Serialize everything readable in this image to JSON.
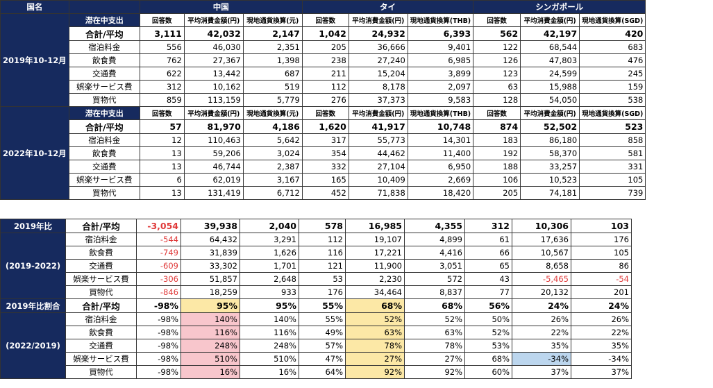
{
  "countries": [
    "中国",
    "タイ",
    "シンガポール"
  ],
  "country_label": "国名",
  "sub_headers": [
    "回答数",
    "平均消費金額(円)"
  ],
  "currency_headers": [
    "現地通貨換算(元)",
    "現地通貨換算(THB)",
    "現地通貨換算(SGD)"
  ],
  "corner_label": "滞在中支出",
  "row_labels": [
    "合計/平均",
    "宿泊料金",
    "飲食費",
    "交通費",
    "娯楽サービス費",
    "買物代"
  ],
  "block2019": {
    "label": "2019年10-12月",
    "rows": [
      [
        "3,111",
        "42,032",
        "2,147",
        "1,042",
        "24,932",
        "6,393",
        "562",
        "42,197",
        "420"
      ],
      [
        "556",
        "46,030",
        "2,351",
        "205",
        "36,666",
        "9,401",
        "122",
        "68,544",
        "683"
      ],
      [
        "762",
        "27,367",
        "1,398",
        "238",
        "27,240",
        "6,985",
        "126",
        "47,803",
        "476"
      ],
      [
        "622",
        "13,442",
        "687",
        "211",
        "15,204",
        "3,899",
        "123",
        "24,599",
        "245"
      ],
      [
        "312",
        "10,162",
        "519",
        "112",
        "8,178",
        "2,097",
        "63",
        "15,988",
        "159"
      ],
      [
        "859",
        "113,159",
        "5,779",
        "276",
        "37,373",
        "9,583",
        "128",
        "54,050",
        "538"
      ]
    ]
  },
  "block2022": {
    "label": "2022年10-12月",
    "rows": [
      [
        "57",
        "81,970",
        "4,186",
        "1,620",
        "41,917",
        "10,748",
        "874",
        "52,502",
        "523"
      ],
      [
        "12",
        "110,463",
        "5,642",
        "317",
        "55,773",
        "14,301",
        "183",
        "86,180",
        "858"
      ],
      [
        "13",
        "59,206",
        "3,024",
        "354",
        "44,462",
        "11,400",
        "192",
        "58,370",
        "581"
      ],
      [
        "13",
        "46,744",
        "2,387",
        "332",
        "27,104",
        "6,950",
        "188",
        "33,257",
        "331"
      ],
      [
        "6",
        "62,019",
        "3,167",
        "165",
        "10,409",
        "2,669",
        "106",
        "10,523",
        "105"
      ],
      [
        "13",
        "131,419",
        "6,712",
        "452",
        "71,838",
        "18,420",
        "205",
        "74,181",
        "739"
      ]
    ]
  },
  "diff": {
    "label1": "2019年比",
    "label2": "(2019-2022)",
    "rows": [
      [
        "-3,054",
        "39,938",
        "2,040",
        "578",
        "16,985",
        "4,355",
        "312",
        "10,306",
        "103"
      ],
      [
        "-544",
        "64,432",
        "3,291",
        "112",
        "19,107",
        "4,899",
        "61",
        "17,636",
        "176"
      ],
      [
        "-749",
        "31,839",
        "1,626",
        "116",
        "17,221",
        "4,416",
        "66",
        "10,567",
        "105"
      ],
      [
        "-609",
        "33,302",
        "1,701",
        "121",
        "11,900",
        "3,051",
        "65",
        "8,658",
        "86"
      ],
      [
        "-306",
        "51,857",
        "2,648",
        "53",
        "2,230",
        "572",
        "43",
        "-5,465",
        "-54"
      ],
      [
        "-846",
        "18,259",
        "933",
        "176",
        "34,464",
        "8,837",
        "77",
        "20,132",
        "201"
      ]
    ]
  },
  "ratio": {
    "label1": "2019年比割合",
    "label2": "(2022/2019)",
    "rows": [
      [
        "-98%",
        "95%",
        "95%",
        "55%",
        "68%",
        "68%",
        "56%",
        "24%",
        "24%"
      ],
      [
        "-98%",
        "140%",
        "140%",
        "55%",
        "52%",
        "52%",
        "50%",
        "26%",
        "26%"
      ],
      [
        "-98%",
        "116%",
        "116%",
        "49%",
        "63%",
        "63%",
        "52%",
        "22%",
        "22%"
      ],
      [
        "-98%",
        "248%",
        "248%",
        "57%",
        "78%",
        "78%",
        "53%",
        "35%",
        "35%"
      ],
      [
        "-98%",
        "510%",
        "510%",
        "47%",
        "27%",
        "27%",
        "68%",
        "-34%",
        "-34%"
      ],
      [
        "-98%",
        "16%",
        "16%",
        "64%",
        "92%",
        "92%",
        "60%",
        "37%",
        "37%"
      ]
    ]
  },
  "highlight_colors": {
    "yellow": "#fce8a6",
    "pink": "#f8c6cc",
    "blue": "#bcd6ee",
    "navy": "#162a5e",
    "negative": "#e03a3a"
  }
}
